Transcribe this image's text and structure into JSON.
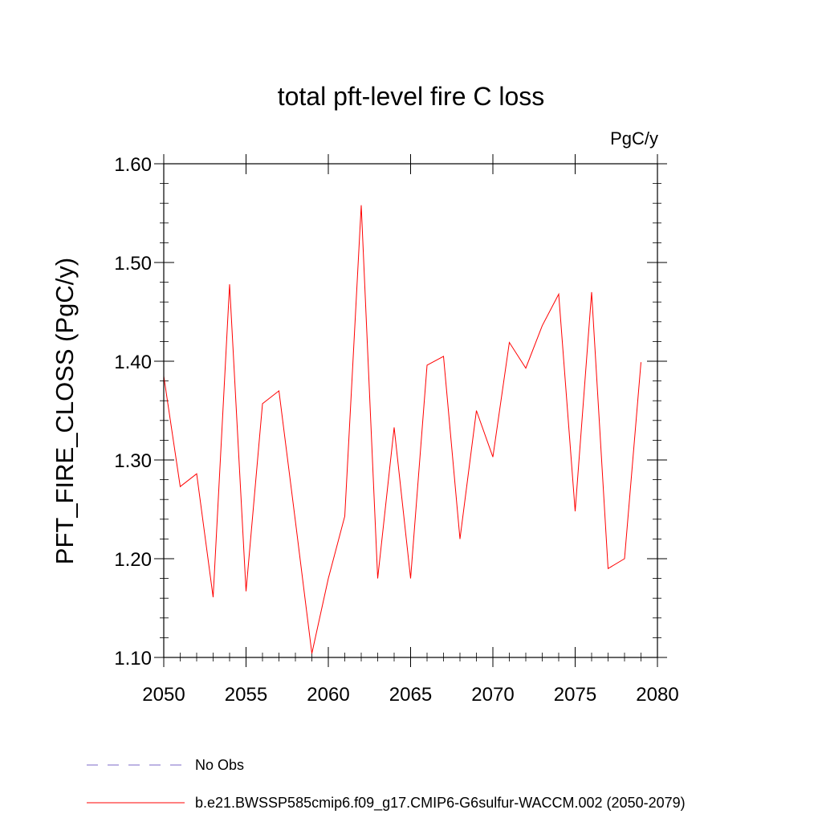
{
  "chart_data": {
    "type": "line",
    "title": "total pft-level fire C loss",
    "units": "PgC/y",
    "xlabel": "",
    "ylabel": "PFT_FIRE_CLOSS  (PgC/y)",
    "xlim": [
      2050,
      2080
    ],
    "ylim": [
      1.1,
      1.6
    ],
    "xticks": [
      2050,
      2055,
      2060,
      2065,
      2070,
      2075,
      2080
    ],
    "xtick_labels": [
      "2050",
      "2055",
      "2060",
      "2065",
      "2070",
      "2075",
      "2080"
    ],
    "yticks": [
      1.1,
      1.2,
      1.3,
      1.4,
      1.5,
      1.6
    ],
    "ytick_labels": [
      "1.10",
      "1.20",
      "1.30",
      "1.40",
      "1.50",
      "1.60"
    ],
    "grid": false,
    "legend_position": "bottom",
    "series": [
      {
        "name": "b.e21.BWSSP585cmip6.f09_g17.CMIP6-G6sulfur-WACCM.002 (2050-2079)",
        "color": "#ff0000",
        "style": "solid",
        "x": [
          2050,
          2051,
          2052,
          2053,
          2054,
          2055,
          2056,
          2057,
          2058,
          2059,
          2060,
          2061,
          2062,
          2063,
          2064,
          2065,
          2066,
          2067,
          2068,
          2069,
          2070,
          2071,
          2072,
          2073,
          2074,
          2075,
          2076,
          2077,
          2078,
          2079
        ],
        "y": [
          1.385,
          1.273,
          1.286,
          1.161,
          1.478,
          1.167,
          1.357,
          1.37,
          1.238,
          1.104,
          1.18,
          1.243,
          1.558,
          1.18,
          1.333,
          1.18,
          1.396,
          1.405,
          1.22,
          1.35,
          1.303,
          1.419,
          1.393,
          1.436,
          1.468,
          1.248,
          1.47,
          1.19,
          1.2,
          1.399
        ]
      }
    ],
    "legend": [
      {
        "label": "No Obs",
        "color": "#7b68c8",
        "style": "dashed"
      },
      {
        "label": "b.e21.BWSSP585cmip6.f09_g17.CMIP6-G6sulfur-WACCM.002 (2050-2079)",
        "color": "#ff0000",
        "style": "solid"
      }
    ]
  }
}
